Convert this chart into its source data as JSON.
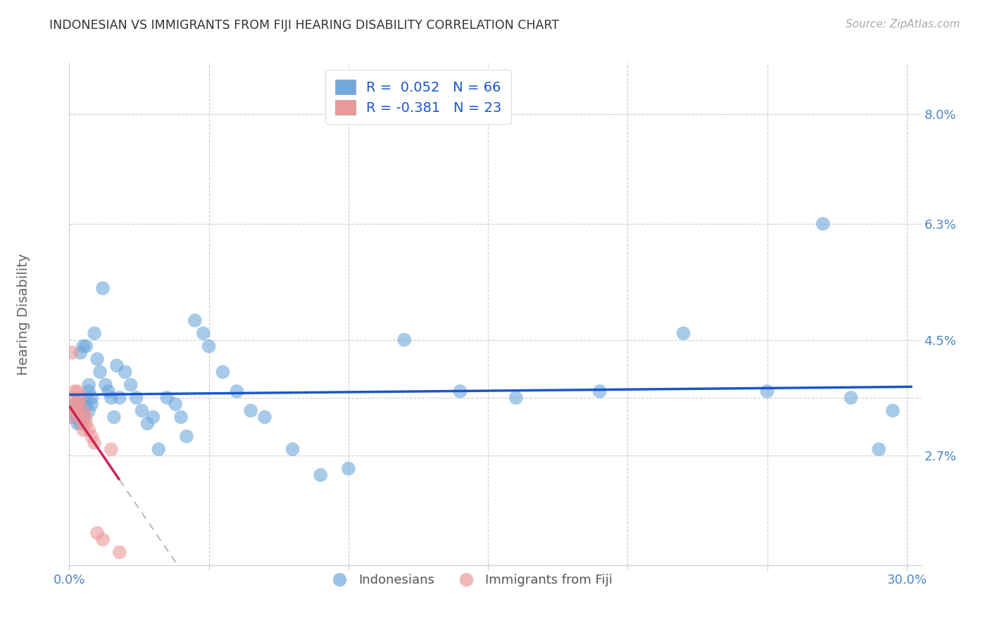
{
  "title": "INDONESIAN VS IMMIGRANTS FROM FIJI HEARING DISABILITY CORRELATION CHART",
  "source": "Source: ZipAtlas.com",
  "xlim": [
    0.0,
    0.305
  ],
  "ylim": [
    0.01,
    0.088
  ],
  "blue_color": "#6fa8dc",
  "pink_color": "#ea9999",
  "blue_line_color": "#1a56cc",
  "pink_line_color": "#cc2255",
  "legend_text_color": "#1a56cc",
  "axis_text_color": "#4a86c8",
  "R_blue": 0.052,
  "N_blue": 66,
  "R_pink": -0.381,
  "N_pink": 23,
  "blue_x": [
    0.001,
    0.001,
    0.002,
    0.002,
    0.002,
    0.003,
    0.003,
    0.003,
    0.003,
    0.004,
    0.004,
    0.004,
    0.004,
    0.005,
    0.005,
    0.005,
    0.005,
    0.006,
    0.006,
    0.006,
    0.007,
    0.007,
    0.007,
    0.008,
    0.008,
    0.009,
    0.01,
    0.011,
    0.012,
    0.013,
    0.014,
    0.015,
    0.016,
    0.017,
    0.018,
    0.02,
    0.022,
    0.024,
    0.026,
    0.028,
    0.03,
    0.032,
    0.035,
    0.038,
    0.04,
    0.042,
    0.045,
    0.048,
    0.05,
    0.055,
    0.06,
    0.065,
    0.07,
    0.08,
    0.09,
    0.1,
    0.12,
    0.14,
    0.16,
    0.19,
    0.22,
    0.25,
    0.27,
    0.28,
    0.29,
    0.295
  ],
  "blue_y": [
    0.034,
    0.033,
    0.035,
    0.034,
    0.033,
    0.035,
    0.034,
    0.033,
    0.032,
    0.043,
    0.034,
    0.033,
    0.032,
    0.044,
    0.035,
    0.034,
    0.033,
    0.044,
    0.036,
    0.035,
    0.038,
    0.037,
    0.034,
    0.036,
    0.035,
    0.046,
    0.042,
    0.04,
    0.053,
    0.038,
    0.037,
    0.036,
    0.033,
    0.041,
    0.036,
    0.04,
    0.038,
    0.036,
    0.034,
    0.032,
    0.033,
    0.028,
    0.036,
    0.035,
    0.033,
    0.03,
    0.048,
    0.046,
    0.044,
    0.04,
    0.037,
    0.034,
    0.033,
    0.028,
    0.024,
    0.025,
    0.045,
    0.037,
    0.036,
    0.037,
    0.046,
    0.037,
    0.063,
    0.036,
    0.028,
    0.034
  ],
  "pink_x": [
    0.001,
    0.001,
    0.001,
    0.002,
    0.002,
    0.002,
    0.003,
    0.003,
    0.003,
    0.004,
    0.004,
    0.005,
    0.005,
    0.005,
    0.006,
    0.006,
    0.007,
    0.008,
    0.009,
    0.01,
    0.012,
    0.015,
    0.018
  ],
  "pink_y": [
    0.043,
    0.036,
    0.033,
    0.037,
    0.035,
    0.034,
    0.037,
    0.035,
    0.034,
    0.036,
    0.033,
    0.034,
    0.032,
    0.031,
    0.033,
    0.032,
    0.031,
    0.03,
    0.029,
    0.015,
    0.014,
    0.028,
    0.012
  ],
  "ytick_positions": [
    0.027,
    0.036,
    0.045,
    0.063,
    0.08
  ],
  "ytick_labels": [
    "2.7%",
    "",
    "4.5%",
    "6.3%",
    "8.0%"
  ],
  "xtick_positions": [
    0.0,
    0.05,
    0.1,
    0.15,
    0.2,
    0.25,
    0.3
  ],
  "xtick_labels": [
    "0.0%",
    "",
    "",
    "",
    "",
    "",
    "30.0%"
  ]
}
